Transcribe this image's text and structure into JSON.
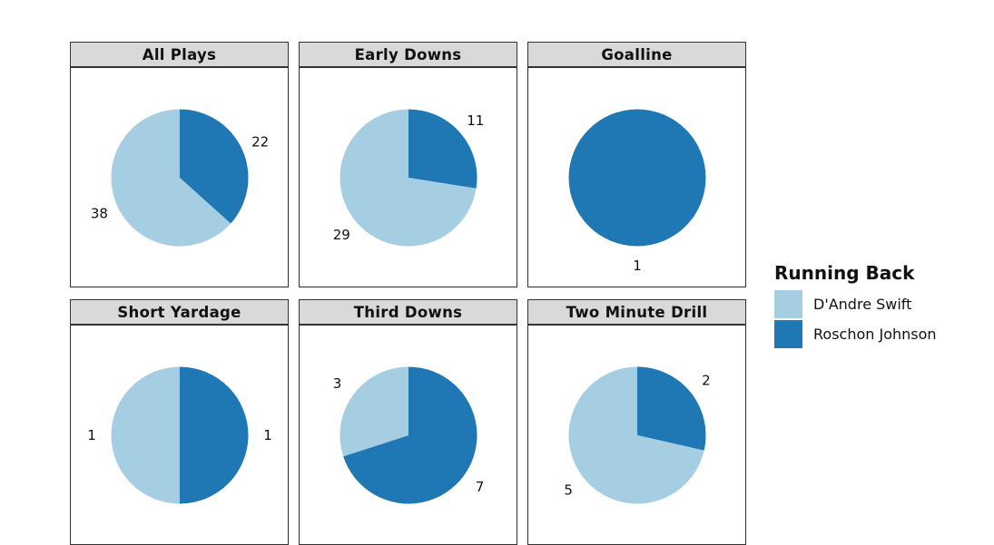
{
  "chart_data": {
    "type": "pie",
    "title": "",
    "legend": {
      "title": "Running Back",
      "placement": "right",
      "entries": [
        {
          "name": "D'Andre Swift",
          "color": "#a6cee3"
        },
        {
          "name": "Roschon Johnson",
          "color": "#1f78b4"
        }
      ]
    },
    "facets": [
      {
        "label": "All Plays",
        "values": [
          38,
          22
        ]
      },
      {
        "label": "Early Downs",
        "values": [
          29,
          11
        ]
      },
      {
        "label": "Goalline",
        "values": [
          0,
          1
        ]
      },
      {
        "label": "Short Yardage",
        "values": [
          1,
          1
        ]
      },
      {
        "label": "Third Downs",
        "values": [
          3,
          7
        ]
      },
      {
        "label": "Two Minute Drill",
        "values": [
          5,
          2
        ]
      }
    ]
  }
}
